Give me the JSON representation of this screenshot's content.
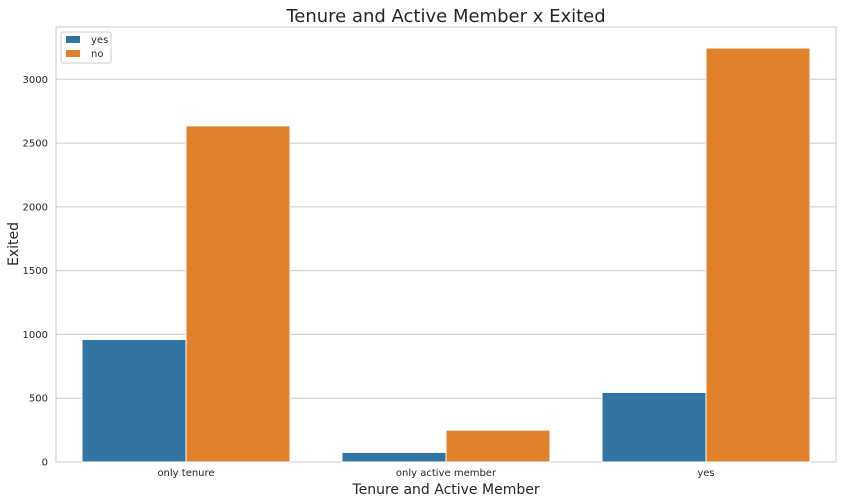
{
  "chart_data": {
    "type": "bar",
    "title": "Tenure and Active Member x Exited",
    "xlabel": "Tenure and Active Member",
    "ylabel": "Exited",
    "categories": [
      "only tenure",
      "only active member",
      "yes"
    ],
    "series": [
      {
        "name": "yes",
        "color": "#3274a1",
        "values": [
          960,
          75,
          545
        ]
      },
      {
        "name": "no",
        "color": "#e1812c",
        "values": [
          2635,
          250,
          3245
        ]
      }
    ],
    "ylim": [
      0,
      3410
    ],
    "yticks": [
      0,
      500,
      1000,
      1500,
      2000,
      2500,
      3000
    ],
    "grid": true,
    "legend_position": "top-left"
  }
}
